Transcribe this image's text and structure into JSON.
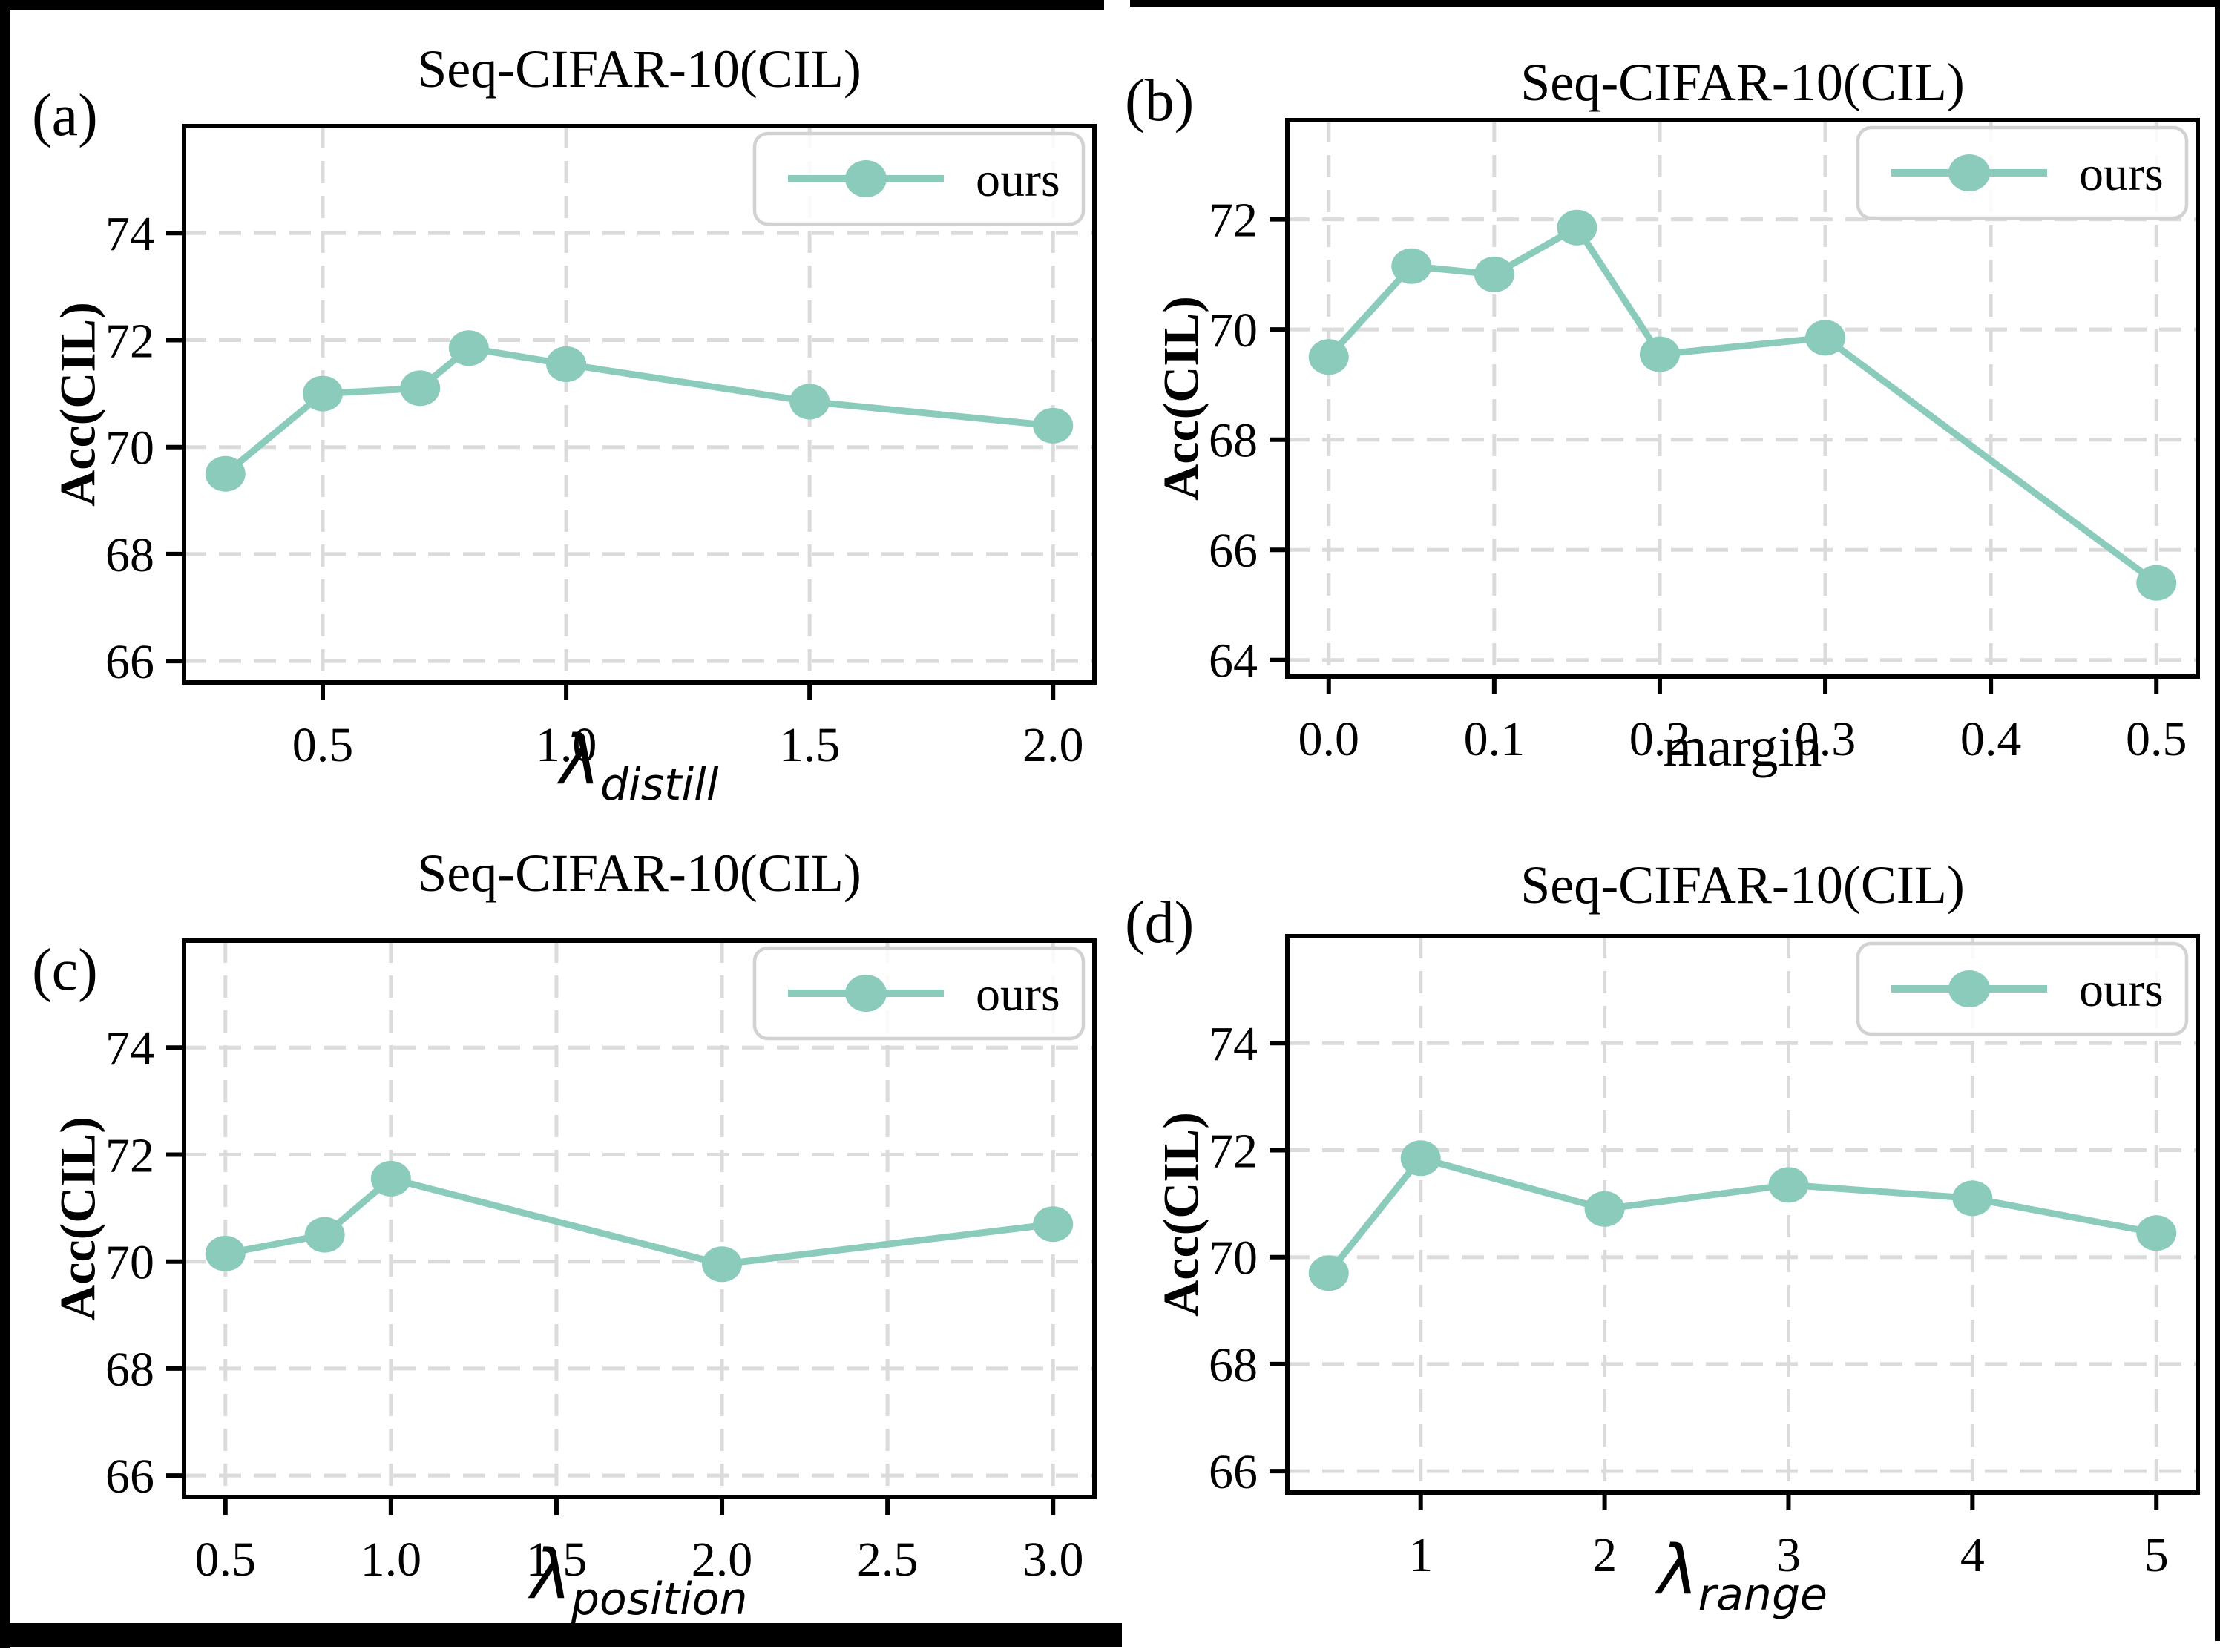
{
  "colors": {
    "line": "#8BCBBC",
    "grid": "#DBDBDB",
    "axis": "#000000",
    "legend_border": "#D2D2D2",
    "background": "#FFFFFF",
    "frame": "#000000",
    "text": "#000000"
  },
  "chart_data": [
    {
      "type": "line",
      "panel_label": "(a)",
      "title": "Seq-CIFAR-10(CIL)",
      "xlabel": {
        "main": "λ",
        "sub": "distill",
        "italic": true
      },
      "ylabel": "Acc(CIL)",
      "legend": {
        "label": "ours",
        "position": "upper right"
      },
      "series": [
        {
          "name": "ours",
          "x": [
            0.3,
            0.5,
            0.7,
            0.8,
            1.0,
            1.5,
            2.0
          ],
          "y": [
            69.5,
            71.0,
            71.1,
            71.85,
            71.55,
            70.85,
            70.4
          ]
        }
      ],
      "xticks": [
        0.5,
        1.0,
        1.5,
        2.0
      ],
      "xtick_labels": [
        "0.5",
        "1.0",
        "1.5",
        "2.0"
      ],
      "yticks": [
        66,
        68,
        70,
        72,
        74
      ],
      "ytick_labels": [
        "66",
        "68",
        "70",
        "72",
        "74"
      ],
      "xlim": [
        0.215,
        2.085
      ],
      "ylim": [
        65.6,
        76.0
      ],
      "grid": true
    },
    {
      "type": "line",
      "panel_label": "(b)",
      "title": "Seq-CIFAR-10(CIL)",
      "xlabel": {
        "main": "margin",
        "sub": "",
        "italic": false
      },
      "ylabel": "Acc(CIL)",
      "legend": {
        "label": "ours",
        "position": "upper right"
      },
      "series": [
        {
          "name": "ours",
          "x": [
            0.0,
            0.05,
            0.1,
            0.15,
            0.2,
            0.3,
            0.5
          ],
          "y": [
            69.5,
            71.15,
            71.0,
            71.85,
            69.55,
            69.85,
            65.4
          ]
        }
      ],
      "xticks": [
        0.0,
        0.1,
        0.2,
        0.3,
        0.4,
        0.5
      ],
      "xtick_labels": [
        "0.0",
        "0.1",
        "0.2",
        "0.3",
        "0.4",
        "0.5"
      ],
      "yticks": [
        64,
        66,
        68,
        70,
        72
      ],
      "ytick_labels": [
        "64",
        "66",
        "68",
        "70",
        "72"
      ],
      "xlim": [
        -0.025,
        0.525
      ],
      "ylim": [
        63.7,
        73.8
      ],
      "grid": true
    },
    {
      "type": "line",
      "panel_label": "(c)",
      "title": "Seq-CIFAR-10(CIL)",
      "xlabel": {
        "main": "λ",
        "sub": "position",
        "italic": true
      },
      "ylabel": "Acc(CIL)",
      "legend": {
        "label": "ours",
        "position": "upper right"
      },
      "series": [
        {
          "name": "ours",
          "x": [
            0.5,
            0.8,
            1.0,
            2.0,
            3.0
          ],
          "y": [
            70.15,
            70.5,
            71.55,
            69.95,
            70.7
          ]
        }
      ],
      "xticks": [
        0.5,
        1.0,
        1.5,
        2.0,
        2.5,
        3.0
      ],
      "xtick_labels": [
        "0.5",
        "1.0",
        "1.5",
        "2.0",
        "2.5",
        "3.0"
      ],
      "yticks": [
        66,
        68,
        70,
        72,
        74
      ],
      "ytick_labels": [
        "66",
        "68",
        "70",
        "72",
        "74"
      ],
      "xlim": [
        0.375,
        3.125
      ],
      "ylim": [
        65.6,
        76.0
      ],
      "grid": true
    },
    {
      "type": "line",
      "panel_label": "(d)",
      "title": "Seq-CIFAR-10(CIL)",
      "xlabel": {
        "main": "λ",
        "sub": "range",
        "italic": true
      },
      "ylabel": "Acc(CIL)",
      "legend": {
        "label": "ours",
        "position": "upper right"
      },
      "series": [
        {
          "name": "ours",
          "x": [
            0.5,
            1,
            2,
            3,
            4,
            5
          ],
          "y": [
            69.7,
            71.85,
            70.9,
            71.35,
            71.1,
            70.45
          ]
        }
      ],
      "xticks": [
        1,
        2,
        3,
        4,
        5
      ],
      "xtick_labels": [
        "1",
        "2",
        "3",
        "4",
        "5"
      ],
      "yticks": [
        66,
        68,
        70,
        72,
        74
      ],
      "ytick_labels": [
        "66",
        "68",
        "70",
        "72",
        "74"
      ],
      "xlim": [
        0.275,
        5.225
      ],
      "ylim": [
        65.6,
        76.0
      ],
      "grid": true
    }
  ]
}
